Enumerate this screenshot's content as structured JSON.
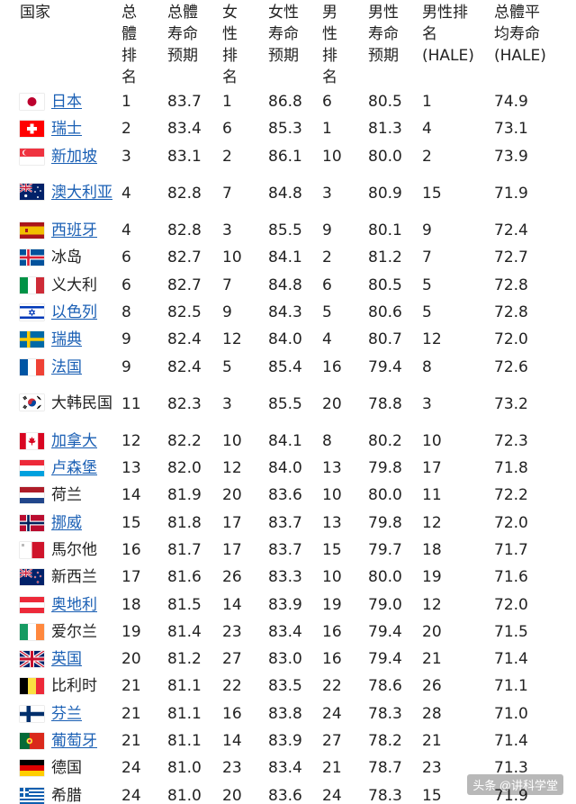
{
  "headers": {
    "country": "国家",
    "total_rank": "总\n體\n排\n名",
    "total_le": "总體\n寿命\n预期",
    "female_rank": "女\n性\n排\n名",
    "female_le": "女性\n寿命\n预期",
    "male_rank": "男\n性\n排\n名",
    "male_le": "男性\n寿命\n预期",
    "male_hale_rank": "男性排\n名\n(HALE)",
    "total_hale": "总體平\n均寿命\n(HALE)"
  },
  "rows": [
    {
      "name": "日本",
      "flag": "japan-flag",
      "link": true,
      "total_rank": "1",
      "total_le": "83.7",
      "female_rank": "1",
      "female_le": "86.8",
      "male_rank": "6",
      "male_le": "80.5",
      "male_hale_rank": "1",
      "total_hale": "74.9"
    },
    {
      "name": "瑞士",
      "flag": "switzerland-flag",
      "link": true,
      "total_rank": "2",
      "total_le": "83.4",
      "female_rank": "6",
      "female_le": "85.3",
      "male_rank": "1",
      "male_le": "81.3",
      "male_hale_rank": "4",
      "total_hale": "73.1"
    },
    {
      "name": "新加坡",
      "flag": "singapore-flag",
      "link": true,
      "total_rank": "3",
      "total_le": "83.1",
      "female_rank": "2",
      "female_le": "86.1",
      "male_rank": "10",
      "male_le": "80.0",
      "male_hale_rank": "2",
      "total_hale": "73.9"
    },
    {
      "name": "澳大利亚",
      "flag": "australia-flag",
      "link": true,
      "tall": true,
      "total_rank": "4",
      "total_le": "82.8",
      "female_rank": "7",
      "female_le": "84.8",
      "male_rank": "3",
      "male_le": "80.9",
      "male_hale_rank": "15",
      "total_hale": "71.9"
    },
    {
      "name": "西班牙",
      "flag": "spain-flag",
      "link": true,
      "total_rank": "4",
      "total_le": "82.8",
      "female_rank": "3",
      "female_le": "85.5",
      "male_rank": "9",
      "male_le": "80.1",
      "male_hale_rank": "9",
      "total_hale": "72.4"
    },
    {
      "name": "冰岛",
      "flag": "iceland-flag",
      "link": false,
      "total_rank": "6",
      "total_le": "82.7",
      "female_rank": "10",
      "female_le": "84.1",
      "male_rank": "2",
      "male_le": "81.2",
      "male_hale_rank": "7",
      "total_hale": "72.7"
    },
    {
      "name": "义大利",
      "flag": "italy-flag",
      "link": false,
      "total_rank": "6",
      "total_le": "82.7",
      "female_rank": "7",
      "female_le": "84.8",
      "male_rank": "6",
      "male_le": "80.5",
      "male_hale_rank": "5",
      "total_hale": "72.8"
    },
    {
      "name": "以色列",
      "flag": "israel-flag",
      "link": true,
      "total_rank": "8",
      "total_le": "82.5",
      "female_rank": "9",
      "female_le": "84.3",
      "male_rank": "5",
      "male_le": "80.6",
      "male_hale_rank": "5",
      "total_hale": "72.8"
    },
    {
      "name": "瑞典",
      "flag": "sweden-flag",
      "link": true,
      "total_rank": "9",
      "total_le": "82.4",
      "female_rank": "12",
      "female_le": "84.0",
      "male_rank": "4",
      "male_le": "80.7",
      "male_hale_rank": "12",
      "total_hale": "72.0"
    },
    {
      "name": "法国",
      "flag": "france-flag",
      "link": true,
      "total_rank": "9",
      "total_le": "82.4",
      "female_rank": "5",
      "female_le": "85.4",
      "male_rank": "16",
      "male_le": "79.4",
      "male_hale_rank": "8",
      "total_hale": "72.6"
    },
    {
      "name": "大韩民国",
      "flag": "south-korea-flag",
      "link": false,
      "tall": true,
      "total_rank": "11",
      "total_le": "82.3",
      "female_rank": "3",
      "female_le": "85.5",
      "male_rank": "20",
      "male_le": "78.8",
      "male_hale_rank": "3",
      "total_hale": "73.2"
    },
    {
      "name": "加拿大",
      "flag": "canada-flag",
      "link": true,
      "total_rank": "12",
      "total_le": "82.2",
      "female_rank": "10",
      "female_le": "84.1",
      "male_rank": "8",
      "male_le": "80.2",
      "male_hale_rank": "10",
      "total_hale": "72.3"
    },
    {
      "name": "卢森堡",
      "flag": "luxembourg-flag",
      "link": true,
      "total_rank": "13",
      "total_le": "82.0",
      "female_rank": "12",
      "female_le": "84.0",
      "male_rank": "13",
      "male_le": "79.8",
      "male_hale_rank": "17",
      "total_hale": "71.8"
    },
    {
      "name": "荷兰",
      "flag": "netherlands-flag",
      "link": false,
      "total_rank": "14",
      "total_le": "81.9",
      "female_rank": "20",
      "female_le": "83.6",
      "male_rank": "10",
      "male_le": "80.0",
      "male_hale_rank": "11",
      "total_hale": "72.2"
    },
    {
      "name": "挪威",
      "flag": "norway-flag",
      "link": true,
      "total_rank": "15",
      "total_le": "81.8",
      "female_rank": "17",
      "female_le": "83.7",
      "male_rank": "13",
      "male_le": "79.8",
      "male_hale_rank": "12",
      "total_hale": "72.0"
    },
    {
      "name": "馬尔他",
      "flag": "malta-flag",
      "link": false,
      "total_rank": "16",
      "total_le": "81.7",
      "female_rank": "17",
      "female_le": "83.7",
      "male_rank": "15",
      "male_le": "79.7",
      "male_hale_rank": "18",
      "total_hale": "71.7"
    },
    {
      "name": "新西兰",
      "flag": "new-zealand-flag",
      "link": false,
      "total_rank": "17",
      "total_le": "81.6",
      "female_rank": "26",
      "female_le": "83.3",
      "male_rank": "10",
      "male_le": "80.0",
      "male_hale_rank": "19",
      "total_hale": "71.6"
    },
    {
      "name": "奥地利",
      "flag": "austria-flag",
      "link": true,
      "total_rank": "18",
      "total_le": "81.5",
      "female_rank": "14",
      "female_le": "83.9",
      "male_rank": "19",
      "male_le": "79.0",
      "male_hale_rank": "12",
      "total_hale": "72.0"
    },
    {
      "name": "爱尔兰",
      "flag": "ireland-flag",
      "link": false,
      "total_rank": "19",
      "total_le": "81.4",
      "female_rank": "23",
      "female_le": "83.4",
      "male_rank": "16",
      "male_le": "79.4",
      "male_hale_rank": "20",
      "total_hale": "71.5"
    },
    {
      "name": "英国",
      "flag": "united-kingdom-flag",
      "link": true,
      "total_rank": "20",
      "total_le": "81.2",
      "female_rank": "27",
      "female_le": "83.0",
      "male_rank": "16",
      "male_le": "79.4",
      "male_hale_rank": "21",
      "total_hale": "71.4"
    },
    {
      "name": "比利时",
      "flag": "belgium-flag",
      "link": false,
      "total_rank": "21",
      "total_le": "81.1",
      "female_rank": "22",
      "female_le": "83.5",
      "male_rank": "22",
      "male_le": "78.6",
      "male_hale_rank": "26",
      "total_hale": "71.1"
    },
    {
      "name": "芬兰",
      "flag": "finland-flag",
      "link": true,
      "total_rank": "21",
      "total_le": "81.1",
      "female_rank": "16",
      "female_le": "83.8",
      "male_rank": "24",
      "male_le": "78.3",
      "male_hale_rank": "28",
      "total_hale": "71.0"
    },
    {
      "name": "葡萄牙",
      "flag": "portugal-flag",
      "link": true,
      "total_rank": "21",
      "total_le": "81.1",
      "female_rank": "14",
      "female_le": "83.9",
      "male_rank": "27",
      "male_le": "78.2",
      "male_hale_rank": "21",
      "total_hale": "71.4"
    },
    {
      "name": "德国",
      "flag": "germany-flag",
      "link": false,
      "total_rank": "24",
      "total_le": "81.0",
      "female_rank": "23",
      "female_le": "83.4",
      "male_rank": "21",
      "male_le": "78.7",
      "male_hale_rank": "23",
      "total_hale": "71.3"
    },
    {
      "name": "希腊",
      "flag": "greece-flag",
      "link": false,
      "total_rank": "24",
      "total_le": "81.0",
      "female_rank": "20",
      "female_le": "83.6",
      "male_rank": "24",
      "male_le": "78.3",
      "male_hale_rank": "15",
      "total_hale": "71.9"
    }
  ],
  "watermark": "头条 @讲科学堂"
}
